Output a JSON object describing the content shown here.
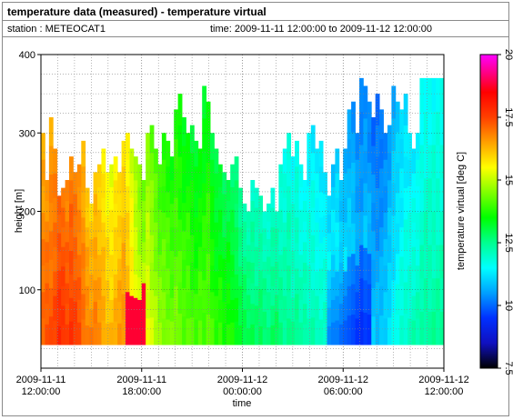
{
  "header": {
    "title": "temperature data (measured) - temperature virtual",
    "station": "station : METEOCAT1",
    "time_range": "time: 2009-11-11 12:00:00 to 2009-11-12 12:00:00"
  },
  "chart_data": {
    "type": "heatmap",
    "xlabel": "time",
    "ylabel": "height [m]",
    "x_ticks": [
      {
        "line1": "2009-11-11",
        "line2": "12:00:00",
        "hour": 0
      },
      {
        "line1": "2009-11-11",
        "line2": "18:00:00",
        "hour": 6
      },
      {
        "line1": "2009-11-12",
        "line2": "00:00:00",
        "hour": 12
      },
      {
        "line1": "2009-11-12",
        "line2": "06:00:00",
        "hour": 18
      },
      {
        "line1": "2009-11-12",
        "line2": "12:00:00",
        "hour": 24
      }
    ],
    "y_ticks": [
      100,
      200,
      300,
      400
    ],
    "ylim": [
      0,
      400
    ],
    "y_min_data": 30,
    "bins": 100,
    "colorbar": {
      "label": "temperature virtual [deg C]",
      "range": [
        7.5,
        20
      ],
      "ticks": [
        7.5,
        10,
        12.5,
        15,
        17.5,
        20
      ]
    },
    "grid": true,
    "tops": [
      300,
      240,
      320,
      280,
      220,
      230,
      240,
      270,
      250,
      260,
      290,
      230,
      210,
      250,
      260,
      280,
      250,
      260,
      270,
      250,
      290,
      300,
      280,
      270,
      260,
      240,
      300,
      310,
      280,
      260,
      300,
      290,
      270,
      330,
      350,
      320,
      300,
      310,
      290,
      280,
      360,
      340,
      300,
      280,
      260,
      250,
      240,
      260,
      270,
      230,
      210,
      200,
      240,
      230,
      220,
      200,
      210,
      230,
      200,
      260,
      280,
      300,
      270,
      290,
      260,
      240,
      300,
      310,
      280,
      290,
      250,
      220,
      260,
      280,
      240,
      280,
      330,
      340,
      300,
      370,
      360,
      340,
      320,
      350,
      330,
      300,
      310,
      360,
      340,
      330,
      350,
      300,
      280,
      300,
      370,
      370,
      370,
      370,
      370,
      370
    ],
    "temps": [
      17.2,
      17.4,
      17.3,
      17.5,
      17.9,
      17.8,
      17.6,
      17.7,
      17.6,
      17.4,
      17.1,
      16.9,
      16.8,
      16.9,
      16.7,
      16.5,
      16.3,
      16.2,
      16.4,
      16.6,
      16.7,
      16.4,
      16.0,
      15.6,
      15.3,
      15.2,
      15.4,
      15.1,
      14.9,
      14.7,
      14.6,
      14.5,
      14.4,
      14.5,
      14.3,
      14.2,
      14.3,
      14.1,
      14.0,
      14.2,
      14.1,
      14.3,
      14.0,
      13.8,
      13.9,
      13.7,
      13.8,
      13.6,
      13.4,
      13.2,
      13.1,
      13.0,
      12.9,
      12.8,
      12.9,
      12.8,
      12.7,
      12.8,
      12.9,
      12.6,
      12.5,
      12.6,
      12.4,
      12.5,
      12.3,
      12.4,
      12.2,
      12.2,
      12.1,
      12.0,
      12.1,
      11.9,
      11.8,
      11.8,
      11.6,
      11.5,
      11.4,
      11.3,
      11.1,
      11.0,
      11.2,
      11.1,
      10.9,
      10.8,
      10.9,
      11.1,
      11.3,
      11.5,
      11.7,
      11.9,
      12.0,
      12.1,
      12.2,
      12.2,
      12.3,
      12.4,
      12.4,
      12.4,
      12.4,
      12.4
    ],
    "notes": [
      "warm patch 18.8 near 17:00-18:00 at heights below 100 m",
      "coolest 9.3 near 06:00 at 50-100 m"
    ]
  }
}
